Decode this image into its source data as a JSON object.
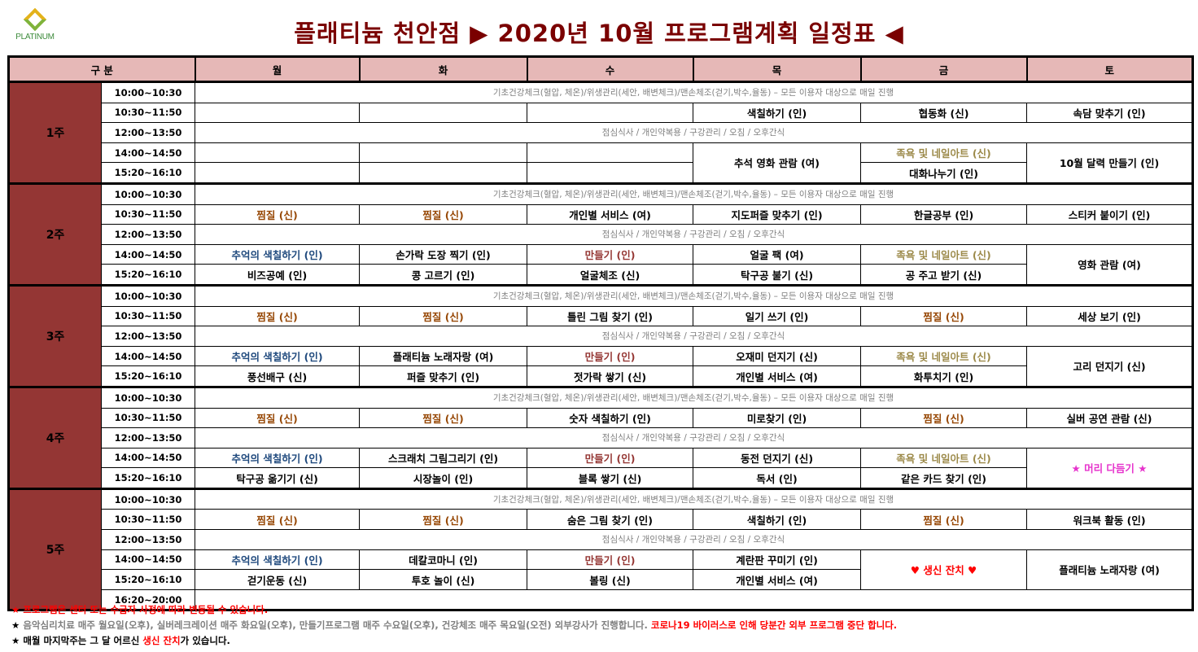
{
  "logo": {
    "text": "PLATINUM"
  },
  "title": "플래티늄 천안점   ▶ 2020년 10월  프로그램계획 일정표 ◀",
  "colors": {
    "title": "#7a0000",
    "header_bg": "#e6b8b7",
    "week_bg": "#943634",
    "steam": "#974806",
    "memory": "#1f497d",
    "make": "#953734",
    "foot": "#9c8a4a",
    "pink": "#e633cc",
    "red": "#ff0000",
    "banner": "#7f7f7f"
  },
  "header": [
    "구 분",
    "월",
    "화",
    "수",
    "목",
    "금",
    "토"
  ],
  "daily_banner": "기초건강체크(혈압, 체온)/위생관리(세안, 배변체크)/맨손체조(걷기,박수,율동) – 모든 이용자 대상으로 매일 진행",
  "lunch_banner": "점심식사 / 개인약복용 / 구강관리 / 오침 / 오후간식",
  "times": [
    "10:00~10:30",
    "10:30~11:50",
    "12:00~13:50",
    "14:00~14:50",
    "15:20~16:10",
    "16:20~20:00"
  ],
  "weeks": [
    {
      "label": "1주",
      "am": [
        {
          "t": ""
        },
        {
          "t": ""
        },
        {
          "t": ""
        },
        {
          "t": "색칠하기 (인)"
        },
        {
          "t": "협동화 (신)"
        },
        {
          "t": "속담 맞추기 (인)"
        }
      ],
      "pm1": [
        {
          "t": ""
        },
        {
          "t": ""
        },
        {
          "t": ""
        },
        {
          "t": "추석 영화 관람 (여)",
          "rs": 2
        },
        {
          "t": "족욕 및 네일아트 (신)",
          "s": "foot"
        },
        {
          "t": "10월 달력 만들기 (인)",
          "rs": 2
        }
      ],
      "pm2": [
        {
          "t": ""
        },
        {
          "t": ""
        },
        {
          "t": ""
        },
        null,
        {
          "t": "대화나누기 (인)"
        },
        null
      ]
    },
    {
      "label": "2주",
      "am": [
        {
          "t": "찜질 (신)",
          "s": "steam"
        },
        {
          "t": "찜질 (신)",
          "s": "steam"
        },
        {
          "t": "개인별 서비스 (여)"
        },
        {
          "t": "지도퍼즐 맞추기 (인)"
        },
        {
          "t": "한글공부 (인)"
        },
        {
          "t": "스티커 붙이기 (인)"
        }
      ],
      "pm1": [
        {
          "t": "추억의 색칠하기 (인)",
          "s": "memory"
        },
        {
          "t": "손가락 도장 찍기 (인)"
        },
        {
          "t": "만들기 (인)",
          "s": "make"
        },
        {
          "t": "얼굴 팩 (여)"
        },
        {
          "t": "족욕 및 네일아트 (신)",
          "s": "foot"
        },
        {
          "t": "영화 관람 (여)",
          "rs": 2
        }
      ],
      "pm2": [
        {
          "t": "비즈공예 (인)"
        },
        {
          "t": "콩 고르기 (인)"
        },
        {
          "t": "얼굴체조 (신)"
        },
        {
          "t": "탁구공 불기 (신)"
        },
        {
          "t": "공 주고 받기 (신)"
        },
        null
      ]
    },
    {
      "label": "3주",
      "am": [
        {
          "t": "찜질 (신)",
          "s": "steam"
        },
        {
          "t": "찜질 (신)",
          "s": "steam"
        },
        {
          "t": "틀린 그림 찾기 (인)"
        },
        {
          "t": "일기 쓰기 (인)"
        },
        {
          "t": "찜질 (신)",
          "s": "steam"
        },
        {
          "t": "세상 보기 (인)"
        }
      ],
      "pm1": [
        {
          "t": "추억의 색칠하기 (인)",
          "s": "memory"
        },
        {
          "t": "플래티늄 노래자랑 (여)"
        },
        {
          "t": "만들기 (인)",
          "s": "make"
        },
        {
          "t": "오재미 던지기 (신)"
        },
        {
          "t": "족욕 및 네일아트 (신)",
          "s": "foot"
        },
        {
          "t": "고리 던지기 (신)",
          "rs": 2
        }
      ],
      "pm2": [
        {
          "t": "풍선배구 (신)"
        },
        {
          "t": "퍼즐 맞추기 (인)"
        },
        {
          "t": "젓가락 쌓기 (신)"
        },
        {
          "t": "개인별 서비스 (여)"
        },
        {
          "t": "화투치기 (인)"
        },
        null
      ]
    },
    {
      "label": "4주",
      "am": [
        {
          "t": "찜질 (신)",
          "s": "steam"
        },
        {
          "t": "찜질 (신)",
          "s": "steam"
        },
        {
          "t": "숫자 색칠하기 (인)"
        },
        {
          "t": "미로찾기 (인)"
        },
        {
          "t": "찜질 (신)",
          "s": "steam"
        },
        {
          "t": "실버 공연 관람 (신)"
        }
      ],
      "pm1": [
        {
          "t": "추억의 색칠하기 (인)",
          "s": "memory"
        },
        {
          "t": "스크래치 그림그리기 (인)"
        },
        {
          "t": "만들기 (인)",
          "s": "make"
        },
        {
          "t": "동전 던지기 (신)"
        },
        {
          "t": "족욕 및 네일아트 (신)",
          "s": "foot"
        },
        {
          "t": "★ 머리 다듬기 ★",
          "rs": 2,
          "s": "pink"
        }
      ],
      "pm2": [
        {
          "t": "탁구공 옮기기 (신)"
        },
        {
          "t": "시장놀이 (인)"
        },
        {
          "t": "블록 쌓기 (신)"
        },
        {
          "t": "독서 (인)"
        },
        {
          "t": "같은 카드 찾기 (인)"
        },
        null
      ]
    },
    {
      "label": "5주",
      "am": [
        {
          "t": "찜질 (신)",
          "s": "steam"
        },
        {
          "t": "찜질 (신)",
          "s": "steam"
        },
        {
          "t": "숨은 그림 찾기 (인)"
        },
        {
          "t": "색칠하기 (인)"
        },
        {
          "t": "찜질 (신)",
          "s": "steam"
        },
        {
          "t": "워크북 활동 (인)"
        }
      ],
      "pm1": [
        {
          "t": "추억의 색칠하기 (인)",
          "s": "memory"
        },
        {
          "t": "데칼코마니 (인)"
        },
        {
          "t": "만들기 (인)",
          "s": "make"
        },
        {
          "t": "계란판 꾸미기 (인)"
        },
        {
          "t": "♥ 생신 잔치 ♥",
          "rs": 2,
          "s": "red"
        },
        {
          "t": "플래티늄 노래자랑 (여)",
          "rs": 2
        }
      ],
      "pm2": [
        {
          "t": "걷기운동 (신)"
        },
        {
          "t": "투호 놀이 (신)"
        },
        {
          "t": "볼링 (신)"
        },
        {
          "t": "개인별 서비스 (여)"
        },
        null,
        null
      ],
      "evening": true
    }
  ],
  "notes": {
    "line1": "★ 프로그램은 센터 또는 수급자 사정에 따라 변동될 수 있습니다.",
    "line2_star": "★ ",
    "line2_gray": "음악심리치료 매주 월요일(오후), 실버레크레이션 매주 화요일(오후), 만들기프로그램 매주 수요일(오후), 건강체조 매주 목요일(오전) 외부강사가 진행합니다. ",
    "line2_red": "코로나19 바이러스로 인해 당분간 외부 프로그램 중단 합니다.",
    "line3_a": "★ 매월 마지막주는 그 달 어르신 ",
    "line3_red": "생신 잔치",
    "line3_b": "가 있습니다."
  }
}
